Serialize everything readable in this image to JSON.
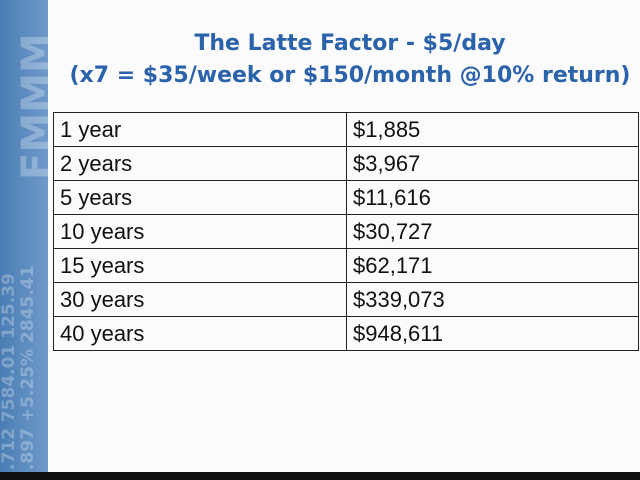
{
  "sidebar": {
    "lines": [
      ".712  7584.01  125.39",
      ".897  +5.25%  2845.41",
      "FMMM"
    ]
  },
  "header": {
    "title": "The Latte Factor - $5/day",
    "subtitle": "(x7 = $35/week or $150/month @10% return)"
  },
  "table": {
    "rows": [
      [
        "1 year",
        "$1,885"
      ],
      [
        "2 years",
        "$3,967"
      ],
      [
        "5 years",
        "$11,616"
      ],
      [
        "10 years",
        "$30,727"
      ],
      [
        "15 years",
        "$62,171"
      ],
      [
        "30 years",
        "$339,073"
      ],
      [
        "40 years",
        "$948,611"
      ]
    ]
  }
}
